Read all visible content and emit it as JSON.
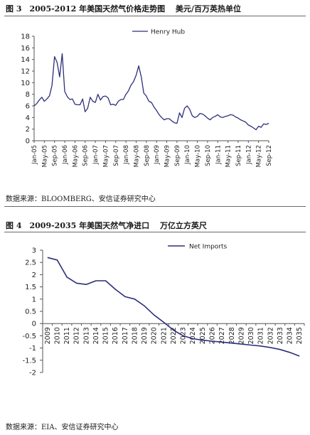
{
  "figure3": {
    "title": "图 3　2005-2012 年美国天然气价格走势图　 美元/百万英热单位",
    "source": "数据来源：BLOOMBERG、安信证券研究中心"
  },
  "figure4": {
    "title": "图 4　2009-2035 年美国天然气净进口　 万亿立方英尺",
    "source": "数据来源：EIA、安信证券研究中心"
  },
  "chart_data": [
    {
      "type": "line",
      "title": "",
      "xlabel": "",
      "ylabel": "",
      "ylim": [
        0,
        18
      ],
      "yticks": [
        0,
        2,
        4,
        6,
        8,
        10,
        12,
        14,
        16,
        18
      ],
      "xlim": [
        "Jan-05",
        "Sep-12"
      ],
      "x_tick_labels": [
        "Jan-05",
        "May-05",
        "Sep-05",
        "Jan-06",
        "May-06",
        "Sep-06",
        "Jan-07",
        "May-07",
        "Sep-07",
        "Jan-08",
        "May-08",
        "Sep-08",
        "Jan-09",
        "May-09",
        "Sep-09",
        "Jan-10",
        "May-10",
        "Sep-10",
        "Jan-11",
        "May-11",
        "Sep-11",
        "Jan-12",
        "May-12",
        "Sep-12"
      ],
      "grid": false,
      "legend": "top-center",
      "color": "#2e2e7a",
      "series": [
        {
          "name": "Henry Hub",
          "x": [
            "Jan-05",
            "Feb-05",
            "Mar-05",
            "Apr-05",
            "May-05",
            "Jun-05",
            "Jul-05",
            "Aug-05",
            "Sep-05",
            "Oct-05",
            "Nov-05",
            "Dec-05",
            "Jan-06",
            "Feb-06",
            "Mar-06",
            "Apr-06",
            "May-06",
            "Jun-06",
            "Jul-06",
            "Aug-06",
            "Sep-06",
            "Oct-06",
            "Nov-06",
            "Dec-06",
            "Jan-07",
            "Feb-07",
            "Mar-07",
            "Apr-07",
            "May-07",
            "Jun-07",
            "Jul-07",
            "Aug-07",
            "Sep-07",
            "Oct-07",
            "Nov-07",
            "Dec-07",
            "Jan-08",
            "Feb-08",
            "Mar-08",
            "Apr-08",
            "May-08",
            "Jun-08",
            "Jul-08",
            "Aug-08",
            "Sep-08",
            "Oct-08",
            "Nov-08",
            "Dec-08",
            "Jan-09",
            "Feb-09",
            "Mar-09",
            "Apr-09",
            "May-09",
            "Jun-09",
            "Jul-09",
            "Aug-09",
            "Sep-09",
            "Oct-09",
            "Nov-09",
            "Dec-09",
            "Jan-10",
            "Feb-10",
            "Mar-10",
            "Apr-10",
            "May-10",
            "Jun-10",
            "Jul-10",
            "Aug-10",
            "Sep-10",
            "Oct-10",
            "Nov-10",
            "Dec-10",
            "Jan-11",
            "Feb-11",
            "Mar-11",
            "Apr-11",
            "May-11",
            "Jun-11",
            "Jul-11",
            "Aug-11",
            "Sep-11",
            "Oct-11",
            "Nov-11",
            "Dec-11",
            "Jan-12",
            "Feb-12",
            "Mar-12",
            "Apr-12",
            "May-12",
            "Jun-12",
            "Jul-12",
            "Aug-12",
            "Sep-12"
          ],
          "values": [
            6.0,
            6.4,
            7.0,
            7.5,
            6.8,
            7.2,
            7.7,
            9.5,
            14.5,
            13.5,
            11.0,
            15.0,
            8.5,
            7.6,
            7.1,
            7.2,
            6.3,
            6.2,
            6.2,
            7.2,
            5.0,
            5.6,
            7.5,
            6.8,
            6.6,
            8.0,
            7.0,
            7.6,
            7.7,
            7.4,
            6.2,
            6.3,
            6.1,
            6.8,
            7.1,
            7.1,
            8.0,
            8.6,
            9.6,
            10.2,
            11.3,
            12.9,
            11.0,
            8.2,
            7.7,
            6.8,
            6.6,
            5.8,
            5.2,
            4.5,
            4.0,
            3.6,
            3.8,
            3.8,
            3.4,
            3.1,
            3.0,
            4.8,
            4.0,
            5.6,
            6.0,
            5.4,
            4.3,
            4.0,
            4.2,
            4.7,
            4.6,
            4.3,
            3.9,
            3.6,
            4.0,
            4.2,
            4.5,
            4.1,
            4.0,
            4.2,
            4.3,
            4.5,
            4.4,
            4.1,
            3.9,
            3.6,
            3.4,
            3.2,
            2.7,
            2.5,
            2.2,
            1.9,
            2.5,
            2.3,
            2.9,
            2.8,
            3.0
          ]
        }
      ]
    },
    {
      "type": "line",
      "title": "",
      "xlabel": "",
      "ylabel": "",
      "ylim": [
        -2,
        3
      ],
      "yticks": [
        -2,
        -1.5,
        -1,
        -0.5,
        0,
        0.5,
        1,
        1.5,
        2,
        2.5,
        3
      ],
      "categories": [
        "2009",
        "2010",
        "2011",
        "2012",
        "2013",
        "2014",
        "2015",
        "2016",
        "2017",
        "2018",
        "2019",
        "2020",
        "2021",
        "2022",
        "2023",
        "2024",
        "2025",
        "2026",
        "2027",
        "2028",
        "2029",
        "2030",
        "2031",
        "2032",
        "2033",
        "2034",
        "2035"
      ],
      "grid": false,
      "legend": "top-center",
      "color": "#2e2e7a",
      "series": [
        {
          "name": "Net Imports",
          "values": [
            2.7,
            2.6,
            1.9,
            1.65,
            1.6,
            1.75,
            1.75,
            1.4,
            1.1,
            1.0,
            0.72,
            0.35,
            0.05,
            -0.27,
            -0.5,
            -0.62,
            -0.68,
            -0.72,
            -0.76,
            -0.8,
            -0.84,
            -0.88,
            -0.92,
            -0.98,
            -1.06,
            -1.18,
            -1.33
          ]
        }
      ]
    }
  ]
}
